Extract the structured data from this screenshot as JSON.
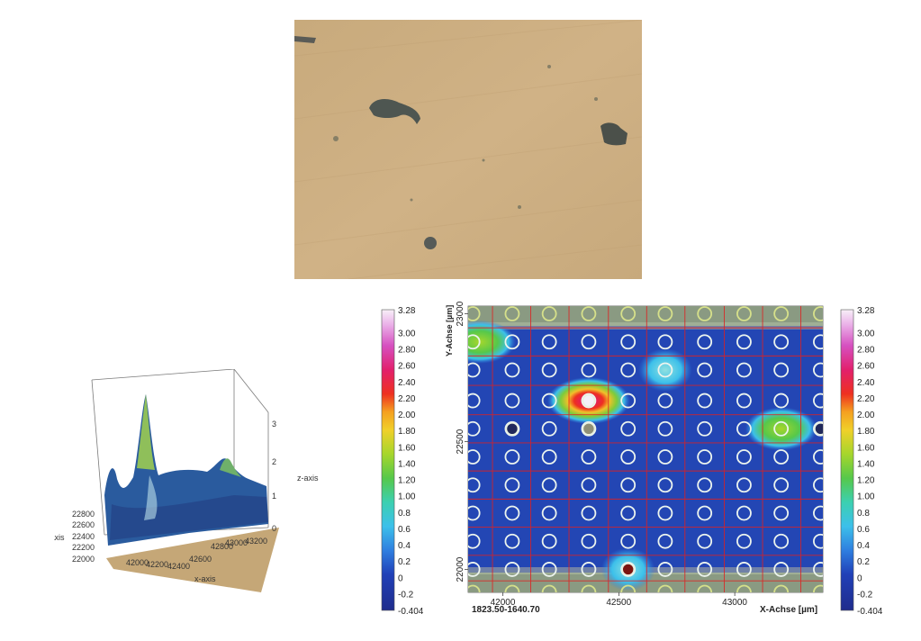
{
  "chart_data": [
    {
      "type": "surface3d",
      "title": "",
      "xlabel": "x-axis",
      "ylabel": "y-axis",
      "zlabel": "z-axis",
      "x_ticks": [
        "42000",
        "42200",
        "42400",
        "42600",
        "42800",
        "43000",
        "43200"
      ],
      "y_ticks": [
        "22000",
        "22200",
        "22400",
        "22600",
        "22800"
      ],
      "z_ticks": [
        "0",
        "1",
        "2",
        "3"
      ],
      "xlim": [
        41900,
        43200
      ],
      "ylim": [
        21950,
        22900
      ],
      "zlim": [
        0,
        3
      ],
      "peaks": [
        {
          "x": 42400,
          "y": 22500,
          "z": 3.1
        },
        {
          "x": 43000,
          "y": 22450,
          "z": 1.7
        },
        {
          "x": 41950,
          "y": 22800,
          "z": 1.2
        }
      ]
    },
    {
      "type": "heatmap",
      "title": "",
      "xlabel": "X-Achse [µm]",
      "ylabel": "Y-Achse [µm]",
      "x_ticks": [
        42000,
        42500,
        43000
      ],
      "y_ticks": [
        22000,
        22500,
        23000
      ],
      "xlim": [
        41850,
        43380
      ],
      "ylim": [
        21910,
        23030
      ],
      "corner_label": "1823.50-1640.70",
      "grid": true,
      "colorbar": {
        "min": -0.404,
        "max": 3.28,
        "labels": [
          "3.28",
          "3.00",
          "2.80",
          "2.60",
          "2.40",
          "2.20",
          "2.00",
          "1.80",
          "1.60",
          "1.40",
          "1.20",
          "1.00",
          "0.8",
          "0.6",
          "0.4",
          "0.2",
          "0",
          "-0.2",
          "-0.404"
        ]
      },
      "measurement_grid": {
        "x": [
          41870,
          42040,
          42200,
          42370,
          42540,
          42700,
          42870,
          43040,
          43200,
          43370
        ],
        "y": [
          23000,
          22890,
          22780,
          22660,
          22550,
          22440,
          22330,
          22220,
          22110,
          22000,
          21910
        ]
      },
      "hotspots": [
        {
          "x": 42370,
          "y": 22660,
          "value": 2.1
        },
        {
          "x": 43200,
          "y": 22550,
          "value": 1.3
        },
        {
          "x": 42700,
          "y": 22780,
          "value": 0.6
        },
        {
          "x": 41900,
          "y": 22890,
          "value": 0.9
        },
        {
          "x": 42540,
          "y": 22000,
          "value": 0.4
        }
      ],
      "filled_points": [
        {
          "x": 42370,
          "y": 22660,
          "color": "#f4f0f8"
        },
        {
          "x": 42370,
          "y": 22550,
          "color": "#8f8f76"
        },
        {
          "x": 42040,
          "y": 22550,
          "color": "#20285a"
        },
        {
          "x": 42540,
          "y": 22000,
          "color": "#7a1410"
        },
        {
          "x": 43370,
          "y": 22550,
          "color": "#20285a"
        }
      ]
    }
  ]
}
